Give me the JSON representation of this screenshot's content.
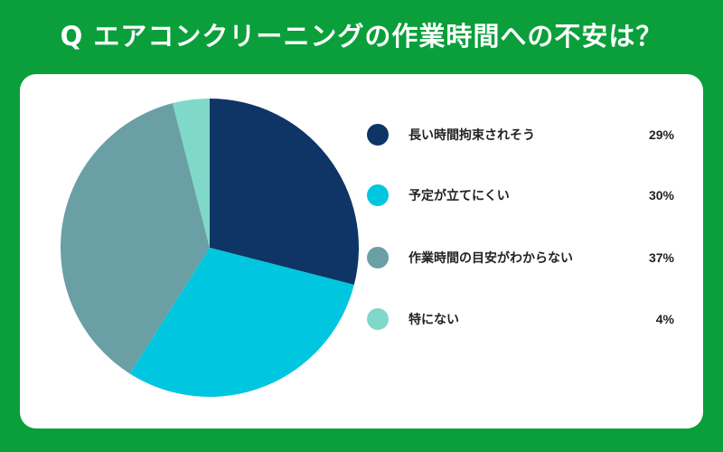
{
  "page": {
    "title": "Q エアコンクリーニングの作業時間への不安は？"
  },
  "colors": {
    "background": "#0a9f3b",
    "card": "#ffffff"
  },
  "chart_data": {
    "type": "pie",
    "title": "Q エアコンクリーニングの作業時間への不安は？",
    "categories": [
      "長い時間拘束されそう",
      "予定が立てにくい",
      "作業時間の目安がわからない",
      "特にない"
    ],
    "values": [
      29,
      30,
      37,
      4
    ],
    "labels": [
      "29%",
      "30%",
      "37%",
      "4%"
    ],
    "colors": [
      "#0e3565",
      "#00c6df",
      "#6a9fa5",
      "#7fd8c8"
    ],
    "legend_position": "right"
  }
}
